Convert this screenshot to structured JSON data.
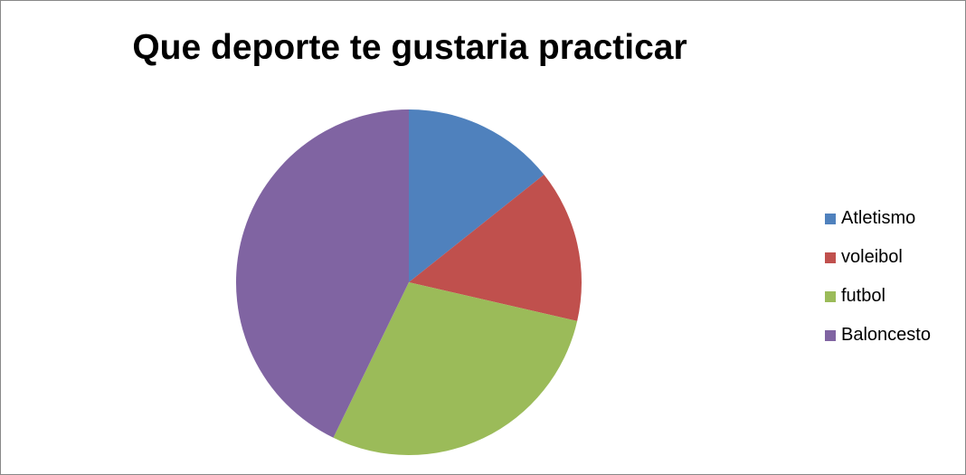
{
  "chart_data": {
    "type": "pie",
    "title": "Que deporte te gustaria practicar",
    "categories": [
      "Atletismo",
      "voleibol",
      "futbol",
      "Baloncesto"
    ],
    "values": [
      14.3,
      14.3,
      28.6,
      42.8
    ],
    "colors": [
      "#4F81BD",
      "#C0504D",
      "#9BBB59",
      "#8064A2"
    ],
    "start_angle_deg": 0,
    "direction": "clockwise",
    "legend_position": "right"
  }
}
